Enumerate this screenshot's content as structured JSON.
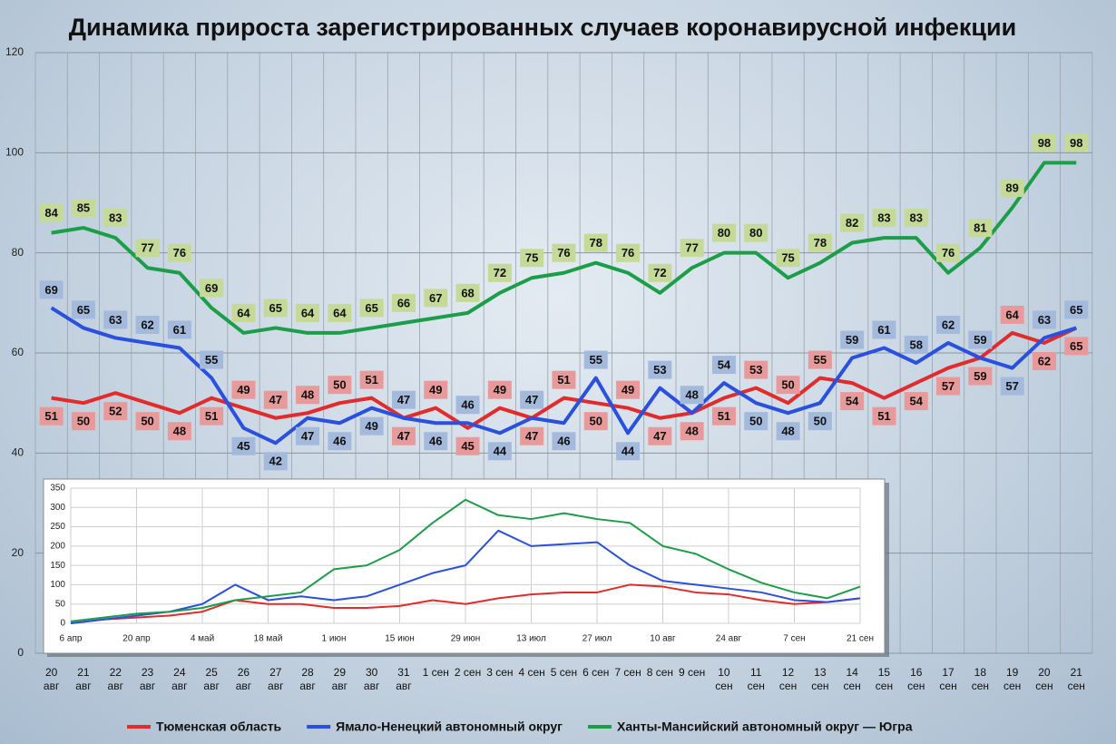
{
  "chart_data": [
    {
      "type": "line",
      "title": "Динамика прироста зарегистрированных случаев коронавирусной инфекции",
      "categories": [
        "20 авг",
        "21 авг",
        "22 авг",
        "23 авг",
        "24 авг",
        "25 авг",
        "26 авг",
        "27 авг",
        "28 авг",
        "29 авг",
        "30 авг",
        "31 авг",
        "1 сен",
        "2 сен",
        "3 сен",
        "4 сен",
        "5 сен",
        "6 сен",
        "7 сен",
        "8 сен",
        "9 сен",
        "10 сен",
        "11 сен",
        "12 сен",
        "13 сен",
        "14 сен",
        "15 сен",
        "16 сен",
        "17 сен",
        "18 сен",
        "19 сен",
        "20 сен",
        "21 сен"
      ],
      "series": [
        {
          "name": "Тюменская область",
          "color": "#e32b2b",
          "label_color": "#e89a9a",
          "values": [
            51,
            50,
            52,
            50,
            48,
            51,
            49,
            47,
            48,
            50,
            51,
            47,
            49,
            45,
            49,
            47,
            51,
            50,
            49,
            47,
            48,
            51,
            53,
            50,
            55,
            54,
            51,
            54,
            57,
            59,
            64,
            62,
            65
          ]
        },
        {
          "name": "Ямало-Ненецкий автономный округ",
          "color": "#2a50df",
          "label_color": "#a3badd",
          "values": [
            69,
            65,
            63,
            62,
            61,
            55,
            45,
            42,
            47,
            46,
            49,
            47,
            46,
            46,
            44,
            47,
            46,
            55,
            44,
            53,
            48,
            54,
            50,
            48,
            50,
            59,
            61,
            58,
            62,
            59,
            57,
            63,
            65
          ]
        },
        {
          "name": "Ханты-Мансийский автономный округ — Югра",
          "color": "#1c9e48",
          "label_color": "#c6da98",
          "values": [
            84,
            85,
            83,
            77,
            76,
            69,
            64,
            65,
            64,
            64,
            65,
            66,
            67,
            68,
            72,
            75,
            76,
            78,
            76,
            72,
            77,
            80,
            80,
            75,
            78,
            82,
            83,
            83,
            76,
            81,
            89,
            98,
            98
          ]
        }
      ],
      "ylim": [
        0,
        120
      ],
      "yticks": [
        0,
        20,
        40,
        60,
        80,
        100,
        120
      ],
      "grid": true,
      "legend": "bottom"
    },
    {
      "type": "line",
      "x": [
        0,
        7,
        14,
        21,
        28,
        35,
        42,
        49,
        56,
        63,
        70,
        77,
        84,
        91,
        98,
        105,
        112,
        119,
        126,
        133,
        140,
        147,
        154,
        161,
        168
      ],
      "series": [
        {
          "color": "#e32b2b",
          "values": [
            0,
            10,
            15,
            20,
            30,
            60,
            50,
            50,
            40,
            40,
            45,
            60,
            50,
            65,
            75,
            80,
            80,
            100,
            95,
            80,
            75,
            60,
            50,
            55,
            65
          ]
        },
        {
          "color": "#2a50df",
          "values": [
            0,
            10,
            20,
            30,
            50,
            100,
            60,
            70,
            60,
            70,
            100,
            130,
            150,
            240,
            200,
            205,
            210,
            150,
            110,
            100,
            90,
            80,
            60,
            55,
            65
          ]
        },
        {
          "color": "#1c9e48",
          "values": [
            5,
            15,
            25,
            30,
            40,
            60,
            70,
            80,
            140,
            150,
            190,
            260,
            320,
            280,
            270,
            285,
            270,
            260,
            200,
            180,
            140,
            105,
            80,
            65,
            95
          ]
        }
      ],
      "xlim": [
        0,
        168
      ],
      "xticks": [
        {
          "value": 0,
          "label": "6 апр"
        },
        {
          "value": 14,
          "label": "20 апр"
        },
        {
          "value": 28,
          "label": "4 май"
        },
        {
          "value": 42,
          "label": "18 май"
        },
        {
          "value": 56,
          "label": "1 июн"
        },
        {
          "value": 70,
          "label": "15 июн"
        },
        {
          "value": 84,
          "label": "29 июн"
        },
        {
          "value": 98,
          "label": "13 июл"
        },
        {
          "value": 112,
          "label": "27 июл"
        },
        {
          "value": 126,
          "label": "10 авг"
        },
        {
          "value": 140,
          "label": "24 авг"
        },
        {
          "value": 154,
          "label": "7 сен"
        },
        {
          "value": 168,
          "label": "21 сен"
        }
      ],
      "ylim": [
        0,
        350
      ],
      "yticks": [
        0,
        50,
        100,
        150,
        200,
        250,
        300,
        350
      ],
      "grid": true
    }
  ]
}
